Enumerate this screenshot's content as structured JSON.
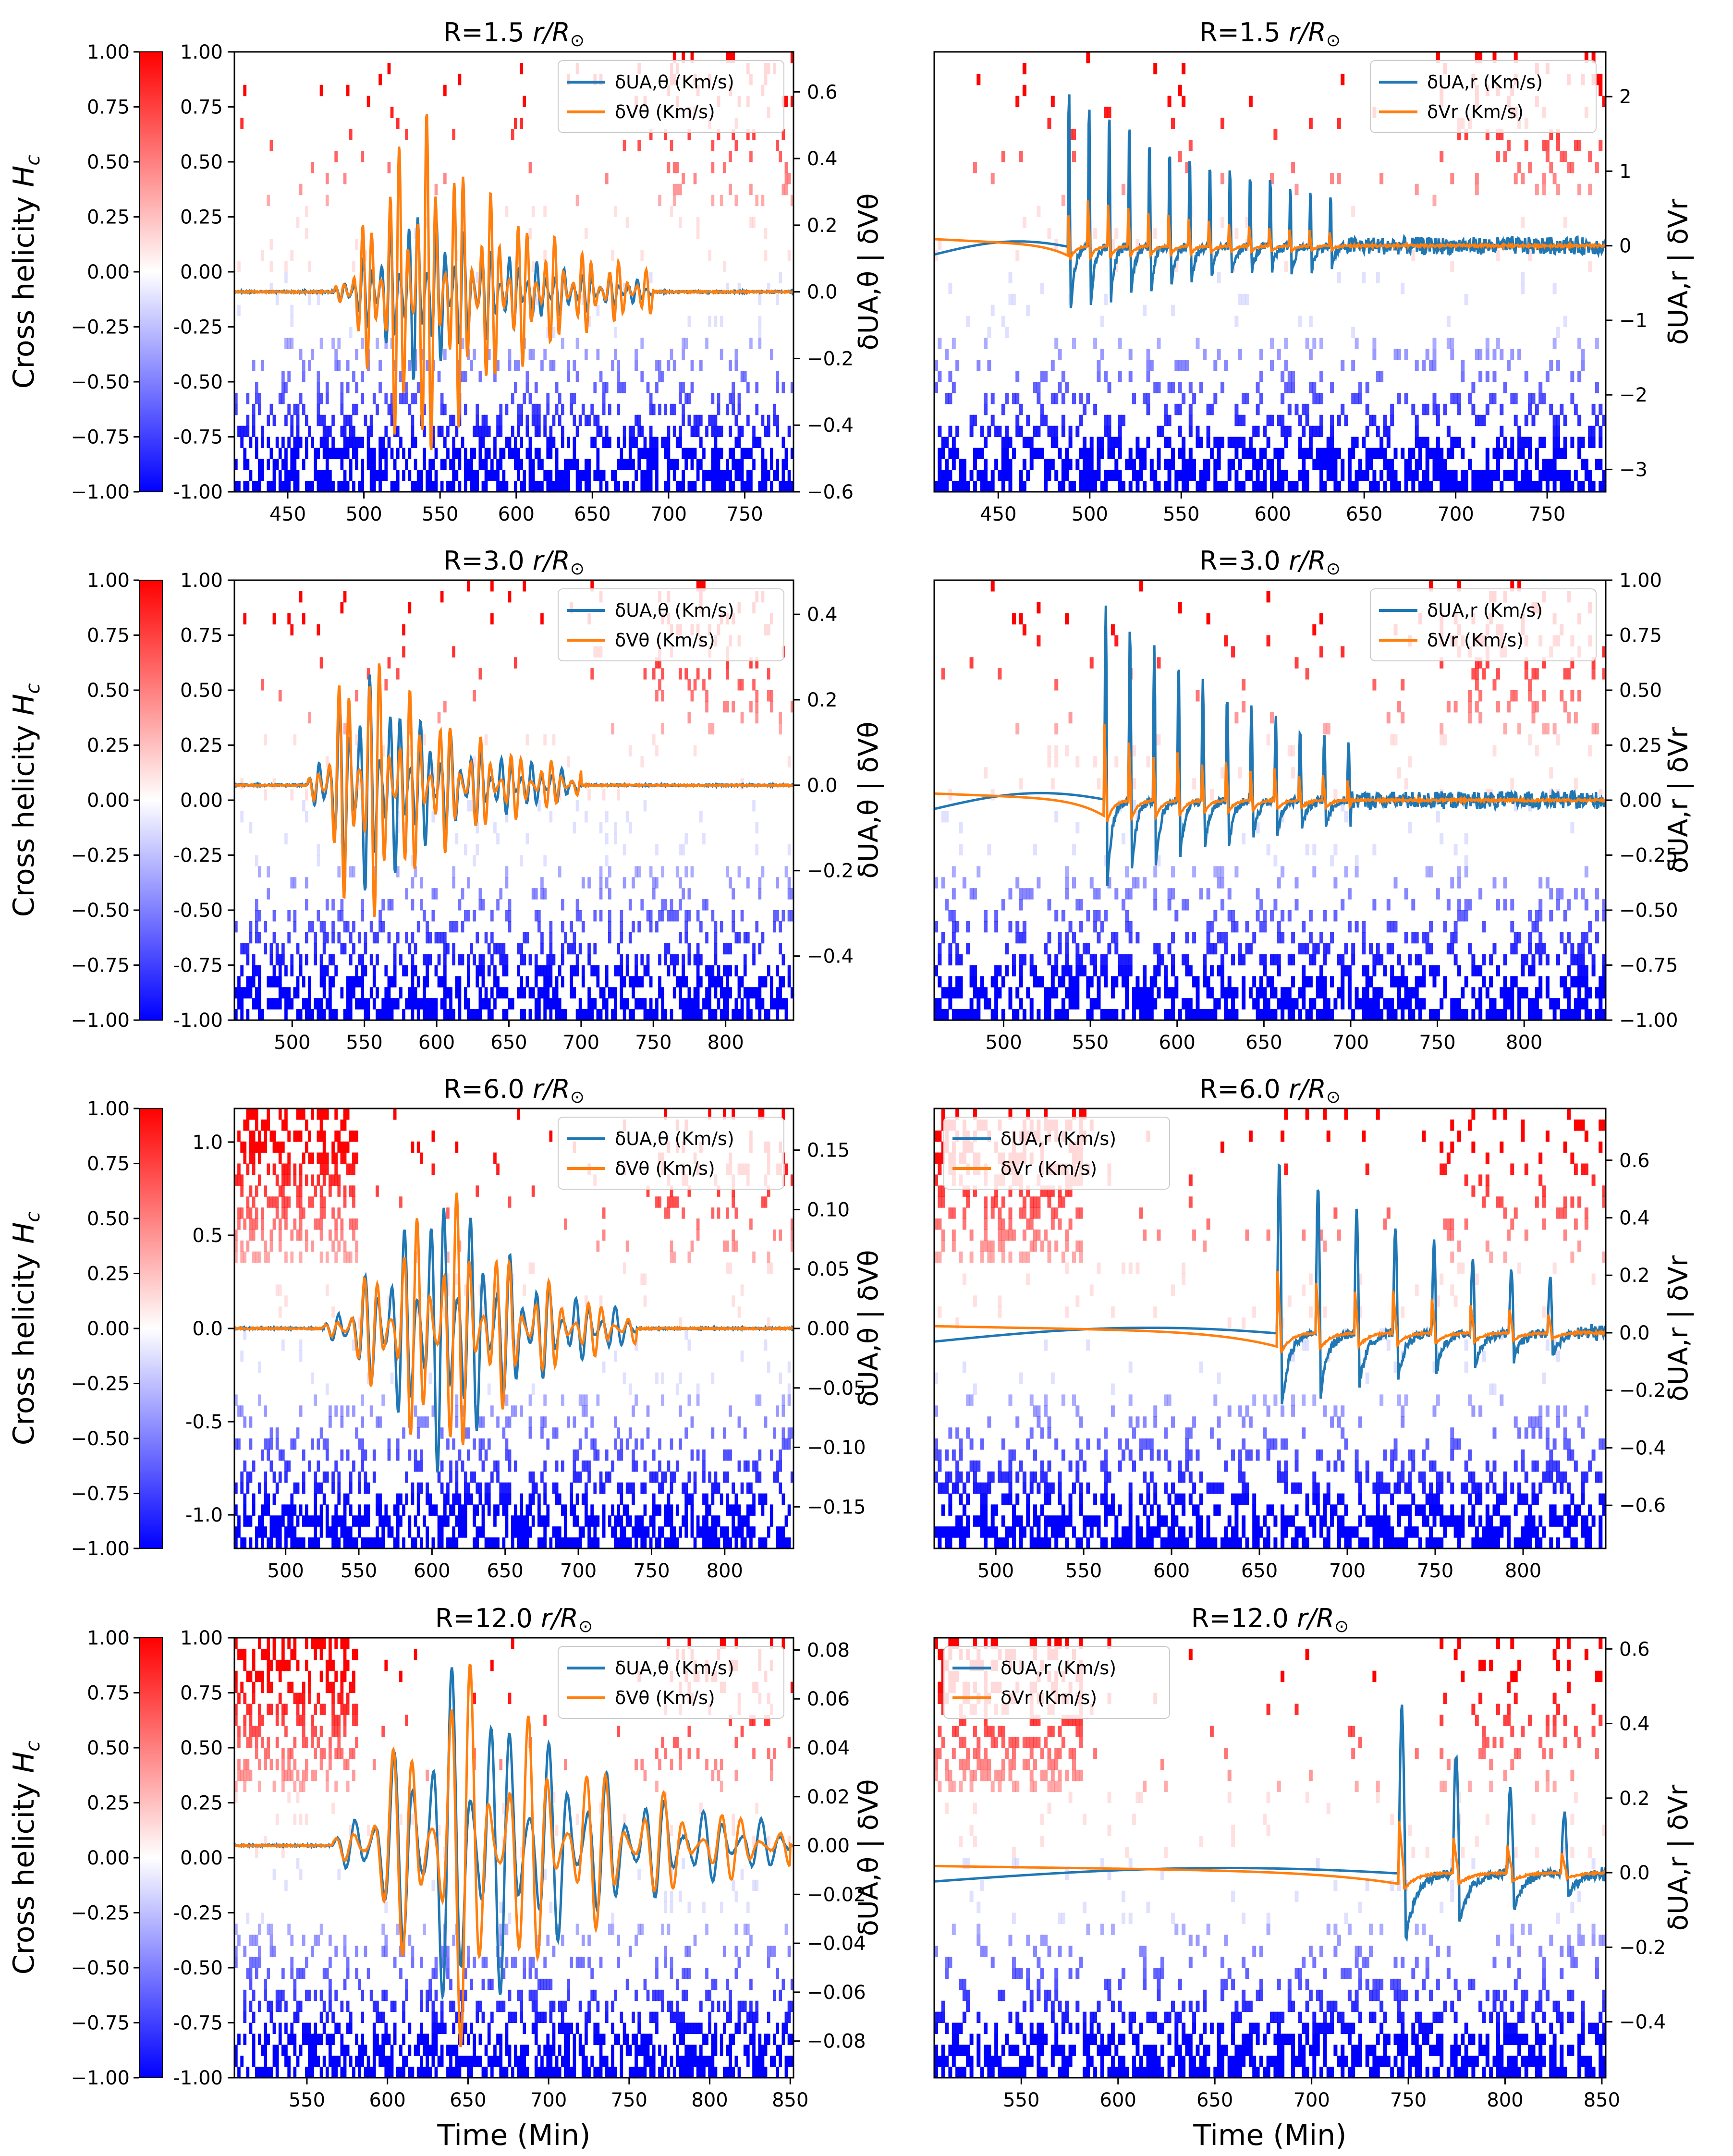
{
  "figure": {
    "xlabel": "Time (Min)",
    "colorbar_label": "Cross helicity H",
    "colorbar_label_sub": "c",
    "colorbar_ticks": [
      "-1.00",
      "-0.75",
      "-0.50",
      "-0.25",
      "0.00",
      "0.25",
      "0.50",
      "0.75",
      "1.00"
    ],
    "colors": {
      "series1": "#1f77b4",
      "series2": "#ff7f0e",
      "positive": "#ff0000",
      "negative": "#0000ff"
    }
  },
  "chart_data": [
    {
      "type": "line",
      "title": "R=1.5 r/R⊙",
      "title_main": "R=1.5 ",
      "title_unit": "r/R",
      "xlim": [
        415,
        782
      ],
      "xticks": [
        450,
        500,
        550,
        600,
        650,
        700,
        750
      ],
      "xtick_labels": [
        "450",
        "500",
        "550",
        "600",
        "650",
        "700",
        "750"
      ],
      "ylim_right": [
        -0.6,
        0.72
      ],
      "yticks_right": [
        -0.6,
        -0.4,
        -0.2,
        0.0,
        0.2,
        0.4,
        0.6
      ],
      "ytick_labels_right": [
        "−0.6",
        "−0.4",
        "−0.2",
        "0.0",
        "0.2",
        "0.4",
        "0.6"
      ],
      "left_ticks": [
        "-1.00",
        "-0.75",
        "-0.50",
        "-0.25",
        "0.00",
        "0.25",
        "0.50",
        "0.75",
        "1.00"
      ],
      "ylabel_right": "δU_A,θ | δV_θ",
      "ylabel_text": "δUA,θ | δVθ",
      "legend_pos": "top-right",
      "series": [
        {
          "name": "δU_A,θ (Km/s)",
          "legend_text": "δUA,θ (Km/s)",
          "color": "#1f77b4"
        },
        {
          "name": "δV_θ (Km/s)",
          "legend_text": "δVθ (Km/s)",
          "color": "#ff7f0e"
        }
      ],
      "wave": {
        "start": 480,
        "peak": 535,
        "end": 690,
        "amp1": 0.28,
        "amp2": 0.6,
        "period": 6,
        "baseline": 0.0,
        "style": "osc"
      }
    },
    {
      "type": "line",
      "title": "R=1.5 r/R⊙",
      "title_main": "R=1.5 ",
      "title_unit": "r/R",
      "xlim": [
        415,
        782
      ],
      "xticks": [
        450,
        500,
        550,
        600,
        650,
        700,
        750
      ],
      "xtick_labels": [
        "450",
        "500",
        "550",
        "600",
        "650",
        "700",
        "750"
      ],
      "ylim_right": [
        -3.3,
        2.6
      ],
      "yticks_right": [
        -3,
        -2,
        -1,
        0,
        1,
        2
      ],
      "ytick_labels_right": [
        "−3",
        "−2",
        "−1",
        "0",
        "1",
        "2"
      ],
      "left_ticks": [],
      "ylabel_right": "δU_A,r | δV_r",
      "ylabel_text": "δUA,r | δVr",
      "legend_pos": "top-right",
      "series": [
        {
          "name": "δU_A,r (Km/s)",
          "legend_text": "δUA,r (Km/s)",
          "color": "#1f77b4"
        },
        {
          "name": "δV_r (Km/s)",
          "legend_text": "δVr (Km/s)",
          "color": "#ff7f0e"
        }
      ],
      "wave": {
        "start": 488,
        "peak": 510,
        "end": 640,
        "amp1": 2.2,
        "amp2": 1.1,
        "period": 11,
        "baseline": 0.0,
        "style": "spike"
      }
    },
    {
      "type": "line",
      "title": "R=3.0 r/R⊙",
      "title_main": "R=3.0 ",
      "title_unit": "r/R",
      "xlim": [
        460,
        847
      ],
      "xticks": [
        500,
        550,
        600,
        650,
        700,
        750,
        800
      ],
      "xtick_labels": [
        "500",
        "550",
        "600",
        "650",
        "700",
        "750",
        "800"
      ],
      "ylim_right": [
        -0.55,
        0.48
      ],
      "yticks_right": [
        -0.4,
        -0.2,
        0.0,
        0.2,
        0.4
      ],
      "ytick_labels_right": [
        "−0.4",
        "−0.2",
        "0.0",
        "0.2",
        "0.4"
      ],
      "left_ticks": [
        "-1.00",
        "-0.75",
        "-0.50",
        "-0.25",
        "0.00",
        "0.25",
        "0.50",
        "0.75",
        "1.00"
      ],
      "ylabel_right": "δU_A,θ | δV_θ",
      "ylabel_text": "δUA,θ | δVθ",
      "legend_pos": "top-right",
      "series": [
        {
          "name": "δU_A,θ (Km/s)",
          "legend_text": "δUA,θ (Km/s)",
          "color": "#1f77b4"
        },
        {
          "name": "δV_θ (Km/s)",
          "legend_text": "δVθ (Km/s)",
          "color": "#ff7f0e"
        }
      ],
      "wave": {
        "start": 510,
        "peak": 545,
        "end": 700,
        "amp1": 0.3,
        "amp2": 0.38,
        "period": 7,
        "baseline": 0.0,
        "style": "osc"
      }
    },
    {
      "type": "line",
      "title": "R=3.0 r/R⊙",
      "title_main": "R=3.0 ",
      "title_unit": "r/R",
      "xlim": [
        460,
        847
      ],
      "xticks": [
        500,
        550,
        600,
        650,
        700,
        750,
        800
      ],
      "xtick_labels": [
        "500",
        "550",
        "600",
        "650",
        "700",
        "750",
        "800"
      ],
      "ylim_right": [
        -1.0,
        1.0
      ],
      "yticks_right": [
        -1.0,
        -0.75,
        -0.5,
        -0.25,
        0.0,
        0.25,
        0.5,
        0.75,
        1.0
      ],
      "ytick_labels_right": [
        "−1.00",
        "−0.75",
        "−0.50",
        "−0.25",
        "0.00",
        "0.25",
        "0.50",
        "0.75",
        "1.00"
      ],
      "left_ticks": [],
      "ylabel_right": "δU_A,r | δV_r",
      "ylabel_text": "δUA,r | δVr",
      "legend_pos": "top-right",
      "series": [
        {
          "name": "δU_A,r (Km/s)",
          "legend_text": "δUA,r (Km/s)",
          "color": "#1f77b4"
        },
        {
          "name": "δV_r (Km/s)",
          "legend_text": "δVr (Km/s)",
          "color": "#ff7f0e"
        }
      ],
      "wave": {
        "start": 558,
        "peak": 575,
        "end": 700,
        "amp1": 0.9,
        "amp2": 0.6,
        "period": 14,
        "baseline": 0.0,
        "style": "spike"
      }
    },
    {
      "type": "line",
      "title": "R=6.0 r/R⊙",
      "title_main": "R=6.0 ",
      "title_unit": "r/R",
      "xlim": [
        465,
        847
      ],
      "xticks": [
        500,
        550,
        600,
        650,
        700,
        750,
        800
      ],
      "xtick_labels": [
        "500",
        "550",
        "600",
        "650",
        "700",
        "750",
        "800"
      ],
      "ylim_right": [
        -0.185,
        0.185
      ],
      "yticks_right": [
        -0.15,
        -0.1,
        -0.05,
        0.0,
        0.05,
        0.1,
        0.15
      ],
      "ytick_labels_right": [
        "−0.15",
        "−0.10",
        "−0.05",
        "0.00",
        "0.05",
        "0.10",
        "0.15"
      ],
      "ylim_left": [
        -1.18,
        1.18
      ],
      "left_ticks": [
        "-1.0",
        "-0.5",
        "0.0",
        "0.5",
        "1.0"
      ],
      "left_tick_values": [
        -1.0,
        -0.5,
        0.0,
        0.5,
        1.0
      ],
      "ylabel_right": "δU_A,θ | δV_θ",
      "ylabel_text": "δUA,θ | δVθ",
      "legend_pos": "top-right",
      "series": [
        {
          "name": "δU_A,θ (Km/s)",
          "legend_text": "δUA,θ (Km/s)",
          "color": "#1f77b4"
        },
        {
          "name": "δV_θ (Km/s)",
          "legend_text": "δVθ (Km/s)",
          "color": "#ff7f0e"
        }
      ],
      "wave": {
        "start": 525,
        "peak": 610,
        "end": 740,
        "amp1": 0.13,
        "amp2": 0.13,
        "period": 9,
        "baseline": 0.0,
        "style": "osc"
      }
    },
    {
      "type": "line",
      "title": "R=6.0 r/R⊙",
      "title_main": "R=6.0 ",
      "title_unit": "r/R",
      "xlim": [
        465,
        847
      ],
      "xticks": [
        500,
        550,
        600,
        650,
        700,
        750,
        800
      ],
      "xtick_labels": [
        "500",
        "550",
        "600",
        "650",
        "700",
        "750",
        "800"
      ],
      "ylim_right": [
        -0.75,
        0.78
      ],
      "yticks_right": [
        -0.6,
        -0.4,
        -0.2,
        0.0,
        0.2,
        0.4,
        0.6
      ],
      "ytick_labels_right": [
        "−0.6",
        "−0.4",
        "−0.2",
        "0.0",
        "0.2",
        "0.4",
        "0.6"
      ],
      "left_ticks": [],
      "ylabel_right": "δU_A,r | δV_r",
      "ylabel_text": "δUA,r | δVr",
      "legend_pos": "top-left",
      "series": [
        {
          "name": "δU_A,r (Km/s)",
          "legend_text": "δUA,r (Km/s)",
          "color": "#1f77b4"
        },
        {
          "name": "δV_r (Km/s)",
          "legend_text": "δVr (Km/s)",
          "color": "#ff7f0e"
        }
      ],
      "wave": {
        "start": 660,
        "peak": 668,
        "end": 830,
        "amp1": 0.6,
        "amp2": 0.4,
        "period": 22,
        "baseline": 0.0,
        "style": "spike"
      }
    },
    {
      "type": "line",
      "title": "R=12.0 r/R⊙",
      "title_main": "R=12.0 ",
      "title_unit": "r/R",
      "xlim": [
        505,
        852
      ],
      "xticks": [
        550,
        600,
        650,
        700,
        750,
        800,
        850
      ],
      "xtick_labels": [
        "550",
        "600",
        "650",
        "700",
        "750",
        "800",
        "850"
      ],
      "ylim_right": [
        -0.095,
        0.085
      ],
      "yticks_right": [
        -0.08,
        -0.06,
        -0.04,
        -0.02,
        0.0,
        0.02,
        0.04,
        0.06,
        0.08
      ],
      "ytick_labels_right": [
        "−0.08",
        "−0.06",
        "−0.04",
        "−0.02",
        "0.00",
        "0.02",
        "0.04",
        "0.06",
        "0.08"
      ],
      "left_ticks": [
        "-1.00",
        "-0.75",
        "-0.50",
        "-0.25",
        "0.00",
        "0.25",
        "0.50",
        "0.75",
        "1.00"
      ],
      "ylabel_right": "δU_A,θ | δV_θ",
      "ylabel_text": "δUA,θ | δVθ",
      "legend_pos": "top-right",
      "series": [
        {
          "name": "δU_A,θ (Km/s)",
          "legend_text": "δUA,θ (Km/s)",
          "color": "#1f77b4"
        },
        {
          "name": "δV_θ (Km/s)",
          "legend_text": "δVθ (Km/s)",
          "color": "#ff7f0e"
        }
      ],
      "wave": {
        "start": 565,
        "peak": 645,
        "end": 850,
        "amp1": 0.08,
        "amp2": 0.085,
        "period": 12,
        "baseline": 0.0,
        "style": "osc"
      }
    },
    {
      "type": "line",
      "title": "R=12.0 r/R⊙",
      "title_main": "R=12.0 ",
      "title_unit": "r/R",
      "xlim": [
        505,
        852
      ],
      "xticks": [
        550,
        600,
        650,
        700,
        750,
        800,
        850
      ],
      "xtick_labels": [
        "550",
        "600",
        "650",
        "700",
        "750",
        "800",
        "850"
      ],
      "ylim_right": [
        -0.55,
        0.63
      ],
      "yticks_right": [
        -0.4,
        -0.2,
        0.0,
        0.2,
        0.4,
        0.6
      ],
      "ytick_labels_right": [
        "−0.4",
        "−0.2",
        "0.0",
        "0.2",
        "0.4",
        "0.6"
      ],
      "left_ticks": [],
      "ylabel_right": "δU_A,r | δV_r",
      "ylabel_text": "δUA,r | δVr",
      "legend_pos": "top-left",
      "series": [
        {
          "name": "δU_A,r (Km/s)",
          "legend_text": "δUA,r (Km/s)",
          "color": "#1f77b4"
        },
        {
          "name": "δV_r (Km/s)",
          "legend_text": "δVr (Km/s)",
          "color": "#ff7f0e"
        }
      ],
      "wave": {
        "start": 745,
        "peak": 752,
        "end": 850,
        "amp1": 0.45,
        "amp2": 0.25,
        "period": 28,
        "baseline": 0.0,
        "style": "spike"
      }
    }
  ]
}
